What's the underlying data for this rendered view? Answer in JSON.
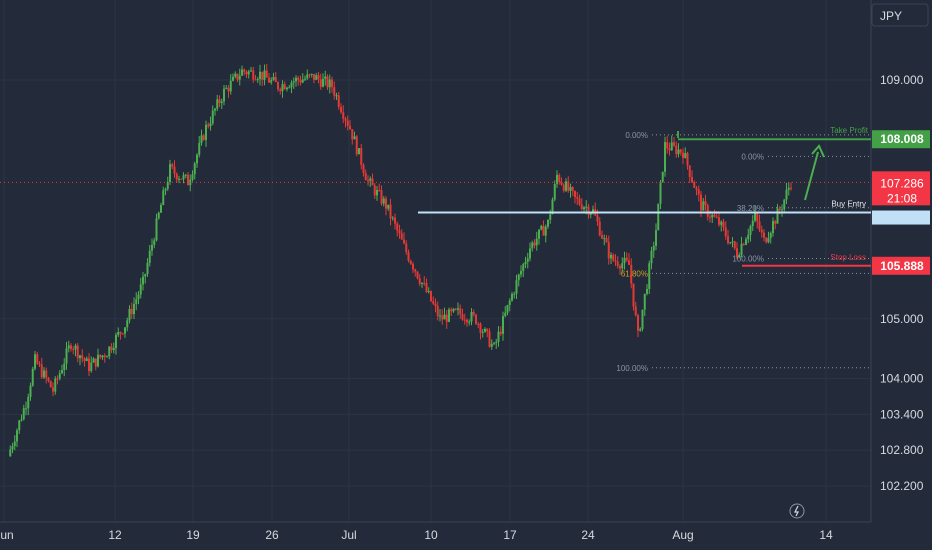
{
  "currency": "JPY",
  "price_axis": {
    "labels": [
      "109.000",
      "105.000",
      "104.000",
      "103.400",
      "102.800",
      "102.200"
    ],
    "values": [
      109.0,
      105.0,
      104.0,
      103.4,
      102.8,
      102.2
    ]
  },
  "time_axis": {
    "labels": [
      "Jun",
      "12",
      "19",
      "26",
      "Jul",
      "10",
      "17",
      "24",
      "Aug",
      "14"
    ]
  },
  "levels": {
    "take_profit": {
      "label": "Take Profit",
      "price": 108.008,
      "price_text": "108.008",
      "color": "#43a047"
    },
    "buy_entry": {
      "label": "Buy Entry",
      "price": 106.78,
      "color": "#bfe0f7"
    },
    "stop_loss": {
      "label": "Stop Loss",
      "price": 105.888,
      "price_text": "105.888",
      "color": "#f23645"
    },
    "current": {
      "price": 107.286,
      "price_text": "107.286",
      "countdown": "21:08",
      "color": "#f23645"
    }
  },
  "fib_left": {
    "labels": [
      "0.00%",
      "61.80%",
      "100.00%"
    ],
    "prices": [
      108.08,
      105.76,
      104.18
    ]
  },
  "fib_right": {
    "labels": [
      "0.00%",
      "38.20%",
      "100.00%"
    ],
    "prices": [
      107.72,
      106.86,
      106.01
    ]
  },
  "colors": {
    "background": "#232b3b",
    "up": "#4caf50",
    "down": "#e53935",
    "grid": "#2b3446"
  },
  "chart_data": {
    "type": "candlestick",
    "y_unit": "JPY",
    "anchors": [
      {
        "d": 0,
        "p": 102.7
      },
      {
        "d": 2,
        "p": 103.6
      },
      {
        "d": 3,
        "p": 104.3
      },
      {
        "d": 5,
        "p": 103.8
      },
      {
        "d": 7,
        "p": 104.6
      },
      {
        "d": 9,
        "p": 104.2
      },
      {
        "d": 11,
        "p": 104.45
      },
      {
        "d": 13,
        "p": 104.9
      },
      {
        "d": 15,
        "p": 105.6
      },
      {
        "d": 17,
        "p": 106.9
      },
      {
        "d": 18,
        "p": 107.5
      },
      {
        "d": 20,
        "p": 107.3
      },
      {
        "d": 22,
        "p": 108.2
      },
      {
        "d": 24,
        "p": 108.8
      },
      {
        "d": 26,
        "p": 109.15
      },
      {
        "d": 28,
        "p": 109.1
      },
      {
        "d": 30,
        "p": 108.9
      },
      {
        "d": 32,
        "p": 109.0
      },
      {
        "d": 34,
        "p": 109.05
      },
      {
        "d": 36,
        "p": 108.9
      },
      {
        "d": 38,
        "p": 108.2
      },
      {
        "d": 40,
        "p": 107.3
      },
      {
        "d": 42,
        "p": 106.9
      },
      {
        "d": 44,
        "p": 106.2
      },
      {
        "d": 46,
        "p": 105.6
      },
      {
        "d": 48,
        "p": 105.0
      },
      {
        "d": 50,
        "p": 105.1
      },
      {
        "d": 52,
        "p": 105.0
      },
      {
        "d": 54,
        "p": 104.5
      },
      {
        "d": 56,
        "p": 105.4
      },
      {
        "d": 58,
        "p": 106.2
      },
      {
        "d": 60,
        "p": 106.6
      },
      {
        "d": 61,
        "p": 107.4
      },
      {
        "d": 63,
        "p": 107.0
      },
      {
        "d": 65,
        "p": 106.8
      },
      {
        "d": 67,
        "p": 106.0
      },
      {
        "d": 69,
        "p": 105.9
      },
      {
        "d": 70,
        "p": 104.7
      },
      {
        "d": 72,
        "p": 106.5
      },
      {
        "d": 73,
        "p": 107.9
      },
      {
        "d": 75,
        "p": 107.8
      },
      {
        "d": 77,
        "p": 106.9
      },
      {
        "d": 79,
        "p": 106.6
      },
      {
        "d": 81,
        "p": 106.1
      },
      {
        "d": 83,
        "p": 106.7
      },
      {
        "d": 84,
        "p": 106.3
      },
      {
        "d": 86,
        "p": 106.9
      },
      {
        "d": 87,
        "p": 107.3
      }
    ]
  }
}
